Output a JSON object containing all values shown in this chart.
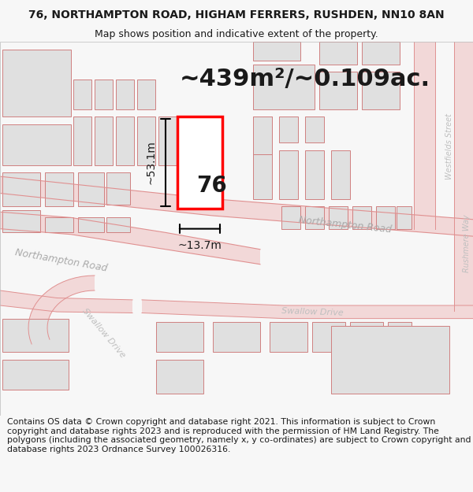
{
  "title_line1": "76, NORTHAMPTON ROAD, HIGHAM FERRERS, RUSHDEN, NN10 8AN",
  "title_line2": "Map shows position and indicative extent of the property.",
  "area_text": "~439m²/~0.109ac.",
  "property_number": "76",
  "dim_vertical": "~53.1m",
  "dim_horizontal": "~13.7m",
  "road_label_upper": "Northampton Road",
  "road_label_lower": "Northampton Road",
  "road_label_swallow1": "Swallow Drive",
  "road_label_swallow2": "Swallow Drive",
  "road_label_west": "Westfields Street",
  "road_label_rush": "Rushmere Way",
  "copyright_text": "Contains OS data © Crown copyright and database right 2021. This information is subject to Crown copyright and database rights 2023 and is reproduced with the permission of HM Land Registry. The polygons (including the associated geometry, namely x, y co-ordinates) are subject to Crown copyright and database rights 2023 Ordnance Survey 100026316.",
  "bg_color": "#f7f7f7",
  "map_bg": "#ffffff",
  "road_fill": "#f2d8d8",
  "road_edge": "#e09090",
  "building_fill": "#e0e0e0",
  "building_edge": "#d08080",
  "highlight_color": "#ff0000",
  "text_dark": "#1a1a1a",
  "road_text": "#b0b0b0",
  "title_fs": 10,
  "sub_fs": 9,
  "area_fs": 22,
  "dim_fs": 10,
  "prop_fs": 20,
  "copy_fs": 7.8
}
